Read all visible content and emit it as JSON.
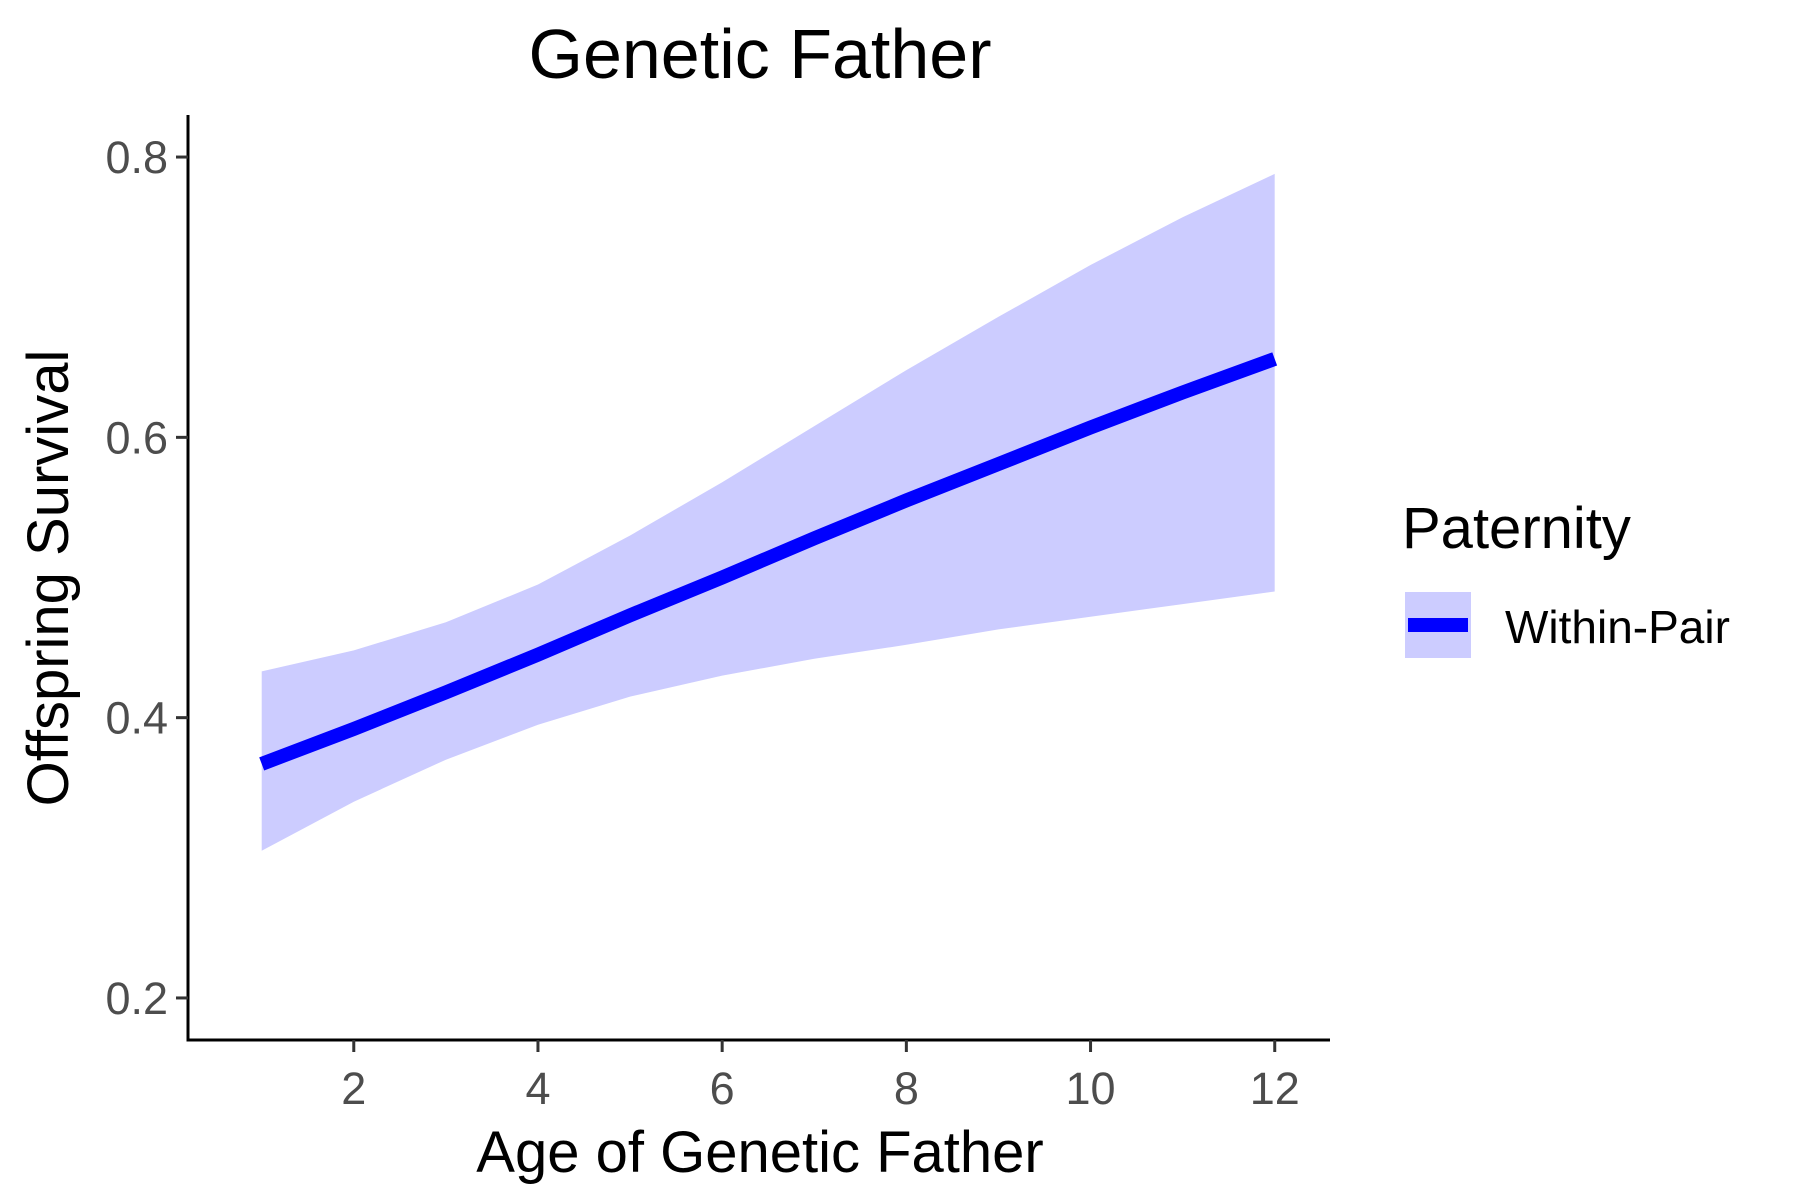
{
  "chart_data": {
    "type": "line",
    "title": "Genetic Father",
    "xlabel": "Age of Genetic Father",
    "ylabel": "Offspring Survival",
    "xlim": [
      0.2,
      12.6
    ],
    "ylim": [
      0.17,
      0.83
    ],
    "x_ticks": [
      2,
      4,
      6,
      8,
      10,
      12
    ],
    "y_ticks": [
      0.2,
      0.4,
      0.6,
      0.8
    ],
    "x_tick_labels": [
      "2",
      "4",
      "6",
      "8",
      "10",
      "12"
    ],
    "y_tick_labels": [
      "0.2",
      "0.4",
      "0.6",
      "0.8"
    ],
    "grid": false,
    "legend": {
      "title": "Paternity",
      "position": "right",
      "entries": [
        "Within-Pair"
      ]
    },
    "series": [
      {
        "name": "Within-Pair",
        "color": "#0000ff",
        "ribbon_color": "#ccccff",
        "x": [
          1,
          2,
          3,
          4,
          5,
          6,
          7,
          8,
          9,
          10,
          11,
          12
        ],
        "y": [
          0.367,
          0.392,
          0.418,
          0.445,
          0.473,
          0.5,
          0.528,
          0.555,
          0.581,
          0.607,
          0.632,
          0.656
        ],
        "lower": [
          0.305,
          0.34,
          0.37,
          0.395,
          0.415,
          0.43,
          0.442,
          0.452,
          0.463,
          0.472,
          0.481,
          0.49
        ],
        "upper": [
          0.433,
          0.448,
          0.468,
          0.495,
          0.53,
          0.568,
          0.608,
          0.648,
          0.686,
          0.723,
          0.757,
          0.788
        ]
      }
    ]
  }
}
